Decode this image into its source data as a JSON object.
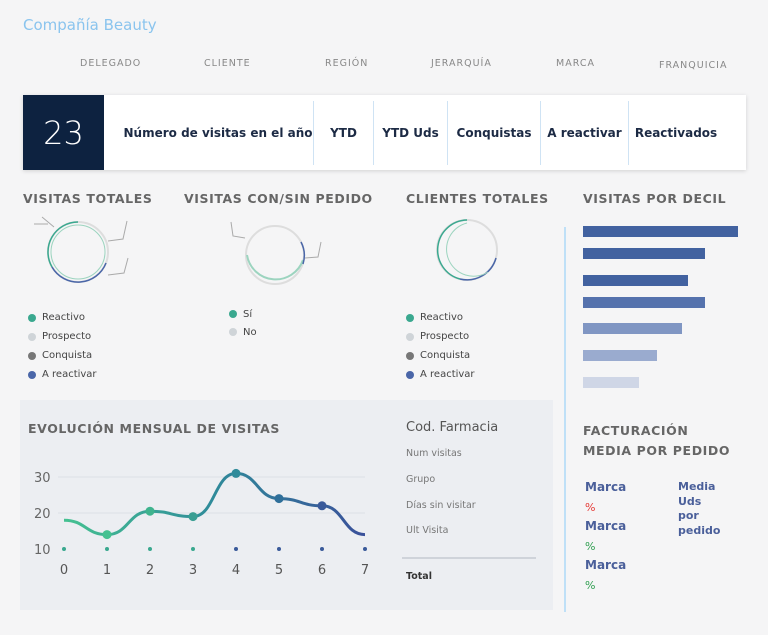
{
  "header": {
    "title": "Compañía Beauty"
  },
  "filters": [
    "DELEGADO",
    "CLIENTE",
    "REGIÓN",
    "JERARQUÍA",
    "MARCA",
    "FRANQUICIA"
  ],
  "kpi": {
    "value": "23",
    "items": [
      "Número de visitas en el año",
      "YTD",
      "YTD Uds",
      "Conquistas",
      "A reactivar",
      "Reactivados"
    ]
  },
  "sections": {
    "visitas_totales": "VISITAS TOTALES",
    "con_sin_pedido": "VISITAS CON/SIN PEDIDO",
    "clientes_totales": "CLIENTES TOTALES",
    "decil": "VISITAS POR DECIL",
    "evolucion": "EVOLUCIÓN MENSUAL DE VISITAS",
    "facturacion_1": "FACTURACIÓN",
    "facturacion_2": "MEDIA POR PEDIDO"
  },
  "legend_tipo": [
    {
      "label": "Reactivo",
      "color": "#3aa88f"
    },
    {
      "label": "Prospecto",
      "color": "#cfd4d8"
    },
    {
      "label": "Conquista",
      "color": "#777777"
    },
    {
      "label": "A reactivar",
      "color": "#4a66a8"
    }
  ],
  "legend_pedido": [
    {
      "label": "Sí",
      "color": "#3aa88f"
    },
    {
      "label": "No",
      "color": "#cfd4d8"
    }
  ],
  "farmacia": {
    "title": "Cod. Farmacia",
    "fields": [
      "Num visitas",
      "Grupo",
      "Días sin visitar",
      "Ult Visita"
    ],
    "total": "Total"
  },
  "facturacion": {
    "rows": [
      {
        "label": "Marca",
        "pct": "%",
        "pct_color": "#e53935"
      },
      {
        "label": "Marca",
        "pct": "%",
        "pct_color": "#2e9e4f"
      },
      {
        "label": "Marca",
        "pct": "%",
        "pct_color": "#2e9e4f"
      }
    ],
    "media_1": "Media",
    "media_2": "Uds",
    "media_3": "por",
    "media_4": "pedido"
  },
  "chart_data": [
    {
      "type": "line",
      "title": "EVOLUCIÓN MENSUAL DE VISITAS",
      "x": [
        0,
        1,
        2,
        3,
        4,
        5,
        6,
        7
      ],
      "y": [
        18,
        14,
        20.5,
        19,
        31,
        24,
        22,
        14
      ],
      "xticks": [
        "0",
        "1",
        "2",
        "3",
        "4",
        "5",
        "6",
        "7"
      ],
      "yticks": [
        "10",
        "20",
        "30"
      ],
      "ylim": [
        10,
        32
      ],
      "grid": true
    },
    {
      "type": "bar",
      "orientation": "horizontal",
      "title": "VISITAS POR DECIL",
      "values": [
        100,
        79,
        68,
        79,
        64,
        48,
        36
      ],
      "colors": [
        "#4262a0",
        "#4262a0",
        "#4262a0",
        "#5572ad",
        "#8096c3",
        "#9aabcf",
        "#cfd6e6"
      ]
    }
  ]
}
